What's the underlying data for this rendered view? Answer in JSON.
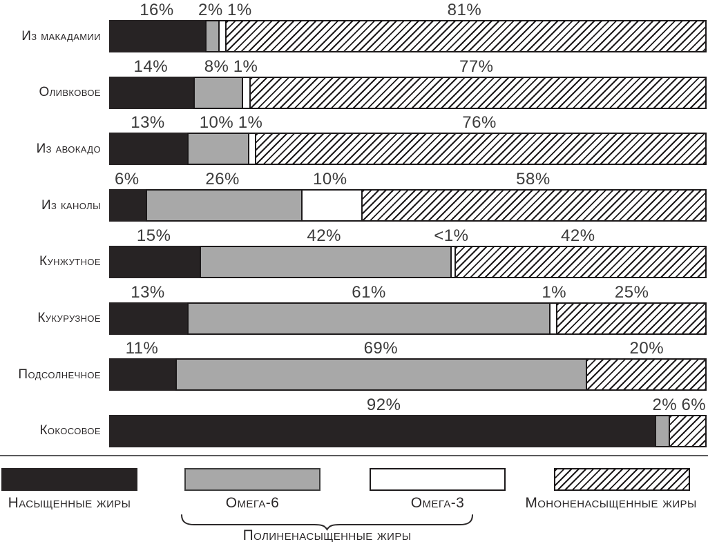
{
  "chart_data": {
    "type": "bar",
    "orientation": "horizontal",
    "stacked": true,
    "value_unit": "%",
    "xlim": [
      0,
      100
    ],
    "grid": false,
    "legend_position": "bottom",
    "categories": [
      "Из макадамии",
      "Оливковое",
      "Из авокадо",
      "Из канолы",
      "Кунжутное",
      "Кукурузное",
      "Подсолнечное",
      "Кокосовое"
    ],
    "series": [
      {
        "name": "Насыщенные жиры",
        "key": "saturated",
        "swatch": "solid-black",
        "color": "#272324",
        "values": [
          16,
          14,
          13,
          6,
          15,
          13,
          11,
          92
        ]
      },
      {
        "name": "Омега-6",
        "key": "omega6",
        "swatch": "solid-gray",
        "color": "#a8a8a8",
        "values": [
          2,
          8,
          10,
          26,
          42,
          61,
          69,
          2
        ]
      },
      {
        "name": "Омега-3",
        "key": "omega3",
        "swatch": "white-outline",
        "color": "#ffffff",
        "values": [
          1,
          1,
          1,
          10,
          0.5,
          1,
          0,
          0
        ]
      },
      {
        "name": "Мононенасыщенные жиры",
        "key": "mono",
        "swatch": "diagonal-hatch",
        "color": "hatched",
        "values": [
          81,
          77,
          76,
          58,
          42,
          25,
          20,
          6
        ]
      }
    ],
    "bar_labels": [
      [
        "16%",
        "2%",
        "1%",
        "81%"
      ],
      [
        "14%",
        "8%",
        "1%",
        "77%"
      ],
      [
        "13%",
        "10%",
        "1%",
        "76%"
      ],
      [
        "6%",
        "26%",
        "10%",
        "58%"
      ],
      [
        "15%",
        "42%",
        "<1%",
        "42%"
      ],
      [
        "13%",
        "61%",
        "1%",
        "25%"
      ],
      [
        "11%",
        "69%",
        null,
        "20%"
      ],
      [
        "92%",
        "2%",
        null,
        "6%"
      ]
    ]
  },
  "legend": {
    "items": [
      {
        "label": "Насыщенные жиры",
        "key": "saturated"
      },
      {
        "label": "Омега-6",
        "key": "omega6"
      },
      {
        "label": "Омега-3",
        "key": "omega3"
      },
      {
        "label": "Мононенасыщенные жиры",
        "key": "mono"
      }
    ],
    "group_brace": {
      "label": "Полиненасыщенные жиры",
      "spans": [
        "Омега-6",
        "Омега-3"
      ]
    }
  },
  "colors": {
    "black_fill": "#272324",
    "gray_fill": "#a8a8a8",
    "white_fill": "#ffffff",
    "hatch_line": "#1c191a",
    "value_text": "#3b3b3b",
    "label_text": "#2b2829",
    "separator": "#59595b"
  }
}
